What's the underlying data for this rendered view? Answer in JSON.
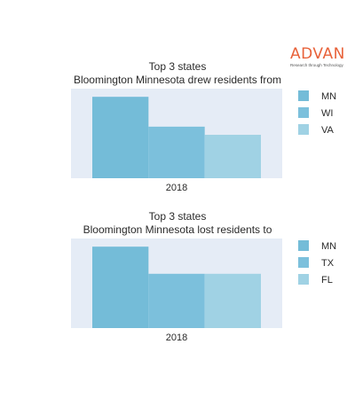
{
  "logo": {
    "name": "ADVAN",
    "tagline": "Research through Technology"
  },
  "colors": {
    "plot_bg": "#e5ecf6",
    "mn": "#74bcd8",
    "second": "#7cc0dc",
    "third": "#a0d2e4"
  },
  "chart_data": [
    {
      "type": "bar",
      "title_line1": "Top 3 states",
      "title_line2": "Bloomington Minnesota drew residents from",
      "categories": [
        "2018"
      ],
      "series": [
        {
          "name": "MN",
          "values": [
            3.0
          ],
          "color": "#74bcd8"
        },
        {
          "name": "WI",
          "values": [
            1.9
          ],
          "color": "#7cc0dc"
        },
        {
          "name": "VA",
          "values": [
            1.6
          ],
          "color": "#a0d2e4"
        }
      ],
      "ylim": [
        0,
        3.3
      ],
      "grid": false,
      "legend": "right"
    },
    {
      "type": "bar",
      "title_line1": "Top 3 states",
      "title_line2": "Bloomington Minnesota lost residents to",
      "categories": [
        "2018"
      ],
      "series": [
        {
          "name": "MN",
          "values": [
            3.0
          ],
          "color": "#74bcd8"
        },
        {
          "name": "TX",
          "values": [
            2.0
          ],
          "color": "#7cc0dc"
        },
        {
          "name": "FL",
          "values": [
            2.0
          ],
          "color": "#a0d2e4"
        }
      ],
      "ylim": [
        0,
        3.3
      ],
      "grid": false,
      "legend": "right"
    }
  ]
}
